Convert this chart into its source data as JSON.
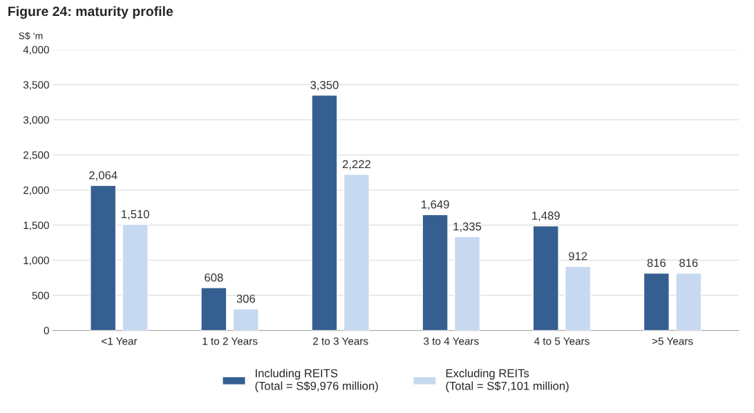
{
  "chart_data": {
    "type": "bar",
    "title": "Figure 24: maturity profile",
    "ylabel": "S$ ‘m",
    "categories": [
      "<1 Year",
      "1 to 2 Years",
      "2 to 3 Years",
      "3 to 4 Years",
      "4 to 5 Years",
      ">5 Years"
    ],
    "series": [
      {
        "name": "Including REITS\n(Total = S$9,976 million)",
        "color": "#365f91",
        "values": [
          2064,
          608,
          3350,
          1649,
          1489,
          816
        ],
        "value_labels": [
          "2,064",
          "608",
          "3,350",
          "1,649",
          "1,489",
          "816"
        ]
      },
      {
        "name": "Excluding REITs\n(Total = S$7,101 million)",
        "color": "#c6d9f1",
        "values": [
          1510,
          306,
          2222,
          1335,
          912,
          816
        ],
        "value_labels": [
          "1,510",
          "306",
          "2,222",
          "1,335",
          "912",
          "816"
        ]
      }
    ],
    "ylim": [
      0,
      4000
    ],
    "yticks": [
      0,
      {
        "value": 500,
        "label": "500"
      },
      {
        "value": 1000,
        "label": "1,000"
      },
      {
        "value": 1500,
        "label": "1,500"
      },
      {
        "value": 2000,
        "label": "2,000"
      },
      {
        "value": 2500,
        "label": "2,500"
      },
      {
        "value": 3000,
        "label": "3,000"
      },
      {
        "value": 3500,
        "label": "3,500"
      },
      {
        "value": 4000,
        "label": "4,000"
      }
    ],
    "grid": "y",
    "legend": "bottom"
  }
}
